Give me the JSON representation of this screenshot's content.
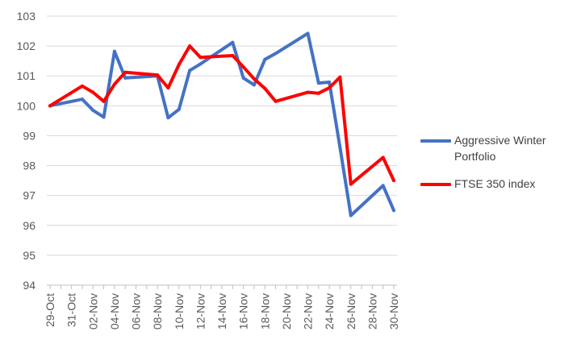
{
  "chart_data": {
    "type": "line",
    "title": "",
    "xlabel": "",
    "ylabel": "",
    "ylim": [
      94,
      103
    ],
    "yticks": [
      94,
      95,
      96,
      97,
      98,
      99,
      100,
      101,
      102,
      103
    ],
    "grid": true,
    "legend_position": "right",
    "xtick_labels": [
      "29-Oct",
      "31-Oct",
      "02-Nov",
      "04-Nov",
      "06-Nov",
      "08-Nov",
      "10-Nov",
      "12-Nov",
      "14-Nov",
      "16-Nov",
      "18-Nov",
      "20-Nov",
      "22-Nov",
      "24-Nov",
      "26-Nov",
      "28-Nov",
      "30-Nov"
    ],
    "x": [
      "29-Oct",
      "01-Nov",
      "02-Nov",
      "03-Nov",
      "04-Nov",
      "05-Nov",
      "08-Nov",
      "09-Nov",
      "10-Nov",
      "11-Nov",
      "12-Nov",
      "15-Nov",
      "16-Nov",
      "17-Nov",
      "18-Nov",
      "19-Nov",
      "22-Nov",
      "23-Nov",
      "24-Nov",
      "25-Nov",
      "26-Nov",
      "29-Nov",
      "30-Nov"
    ],
    "series": [
      {
        "name": "Aggressive Winter Portfolio",
        "color": "#4472C4",
        "values": [
          100.0,
          100.22,
          99.85,
          99.62,
          101.82,
          100.93,
          101.0,
          99.6,
          99.88,
          101.18,
          101.4,
          102.12,
          100.93,
          100.7,
          101.55,
          101.75,
          102.42,
          100.76,
          100.79,
          98.6,
          96.33,
          97.33,
          96.5
        ]
      },
      {
        "name": "FTSE 350 index",
        "color": "#FF0000",
        "values": [
          100.0,
          100.66,
          100.45,
          100.15,
          100.72,
          101.12,
          101.03,
          100.6,
          101.38,
          102.0,
          101.62,
          101.68,
          101.3,
          100.9,
          100.58,
          100.15,
          100.45,
          100.42,
          100.6,
          100.96,
          97.38,
          98.27,
          97.5
        ]
      }
    ]
  }
}
